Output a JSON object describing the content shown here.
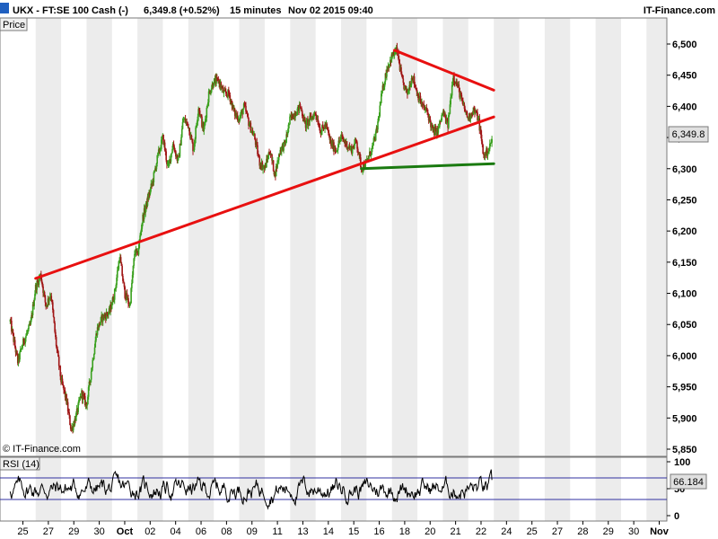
{
  "header": {
    "title": "UKX - FT:SE 100 Cash (-)",
    "quote": "6,349.8 (+0.52%)",
    "interval": "15 minutes",
    "datetime": "Nov 02 2015 09:40",
    "brand": "IT-Finance.com"
  },
  "price_panel": {
    "label": "Price",
    "copyright": "© IT-Finance.com",
    "last_price_label": "6,349.8"
  },
  "rsi_panel": {
    "label": "RSI (14)",
    "last_value_label": "66.184"
  },
  "colors": {
    "up_candle": "#3aa01e",
    "down_candle": "#a01616",
    "trendline_red": "#e81010",
    "support_green": "#1a7a10",
    "rsi_line": "#000000",
    "rsi_band": "#3030a0",
    "alt_day_shade": "#ececec"
  },
  "chart_data": [
    {
      "type": "candlestick",
      "panel": "price",
      "ylim": [
        5850,
        6520
      ],
      "y_ticks": [
        5850,
        5900,
        5950,
        6000,
        6050,
        6100,
        6150,
        6200,
        6250,
        6300,
        6350,
        6400,
        6450,
        6500
      ],
      "y_tick_labels": [
        "5,850",
        "5,900",
        "5,950",
        "6,000",
        "6,050",
        "6,100",
        "6,150",
        "6,200",
        "6,250",
        "6,300",
        "6,350",
        "6,400",
        "6,450",
        "6,500"
      ],
      "x_ticks": [
        "25",
        "27",
        "29",
        "30",
        "Oct",
        "02",
        "04",
        "06",
        "08",
        "09",
        "11",
        "13",
        "14",
        "15",
        "16",
        "18",
        "20",
        "21",
        "22",
        "24",
        "25",
        "27",
        "28",
        "29",
        "30",
        "Nov"
      ],
      "x_tick_sessions": [
        0.5,
        1.5,
        2.5,
        3.5,
        4.5,
        5.5,
        6.5,
        7.5,
        8.5,
        9.5,
        10.5,
        11.5,
        12.5,
        13.5,
        14.5,
        15.5,
        16.5,
        17.5,
        18.5,
        19.5,
        20.5,
        21.5,
        22.5,
        23.5,
        24.5,
        25.5
      ],
      "x_range_sessions": [
        -0.4,
        25.8
      ],
      "last_price": 6349.8,
      "price_path": [
        [
          0.0,
          6055
        ],
        [
          0.3,
          5990
        ],
        [
          0.5,
          6020
        ],
        [
          0.8,
          6050
        ],
        [
          1.0,
          6110
        ],
        [
          1.2,
          6130
        ],
        [
          1.4,
          6080
        ],
        [
          1.6,
          6100
        ],
        [
          1.8,
          6020
        ],
        [
          2.0,
          5960
        ],
        [
          2.2,
          5930
        ],
        [
          2.4,
          5880
        ],
        [
          2.6,
          5905
        ],
        [
          2.8,
          5940
        ],
        [
          3.0,
          5920
        ],
        [
          3.2,
          5980
        ],
        [
          3.4,
          6040
        ],
        [
          3.6,
          6060
        ],
        [
          3.9,
          6070
        ],
        [
          4.1,
          6100
        ],
        [
          4.3,
          6160
        ],
        [
          4.5,
          6100
        ],
        [
          4.7,
          6080
        ],
        [
          4.9,
          6170
        ],
        [
          5.0,
          6160
        ],
        [
          5.2,
          6220
        ],
        [
          5.4,
          6250
        ],
        [
          5.6,
          6280
        ],
        [
          5.8,
          6320
        ],
        [
          6.0,
          6350
        ],
        [
          6.2,
          6300
        ],
        [
          6.4,
          6340
        ],
        [
          6.6,
          6310
        ],
        [
          6.8,
          6380
        ],
        [
          7.0,
          6370
        ],
        [
          7.2,
          6330
        ],
        [
          7.4,
          6400
        ],
        [
          7.6,
          6360
        ],
        [
          7.8,
          6420
        ],
        [
          8.0,
          6440
        ],
        [
          8.2,
          6440
        ],
        [
          8.4,
          6420
        ],
        [
          8.6,
          6420
        ],
        [
          8.8,
          6390
        ],
        [
          9.0,
          6380
        ],
        [
          9.2,
          6400
        ],
        [
          9.4,
          6370
        ],
        [
          9.6,
          6350
        ],
        [
          9.8,
          6310
        ],
        [
          10.0,
          6300
        ],
        [
          10.2,
          6330
        ],
        [
          10.4,
          6290
        ],
        [
          10.6,
          6330
        ],
        [
          10.8,
          6340
        ],
        [
          11.0,
          6380
        ],
        [
          11.2,
          6390
        ],
        [
          11.4,
          6400
        ],
        [
          11.6,
          6370
        ],
        [
          11.8,
          6380
        ],
        [
          12.0,
          6390
        ],
        [
          12.2,
          6360
        ],
        [
          12.4,
          6370
        ],
        [
          12.6,
          6340
        ],
        [
          12.8,
          6330
        ],
        [
          13.0,
          6350
        ],
        [
          13.2,
          6340
        ],
        [
          13.4,
          6330
        ],
        [
          13.6,
          6345
        ],
        [
          13.8,
          6300
        ],
        [
          14.0,
          6310
        ],
        [
          14.2,
          6330
        ],
        [
          14.4,
          6360
        ],
        [
          14.6,
          6420
        ],
        [
          14.8,
          6460
        ],
        [
          15.0,
          6480
        ],
        [
          15.2,
          6490
        ],
        [
          15.4,
          6440
        ],
        [
          15.6,
          6420
        ],
        [
          15.8,
          6450
        ],
        [
          16.0,
          6420
        ],
        [
          16.2,
          6400
        ],
        [
          16.4,
          6390
        ],
        [
          16.6,
          6360
        ],
        [
          16.8,
          6360
        ],
        [
          17.0,
          6390
        ],
        [
          17.2,
          6370
        ],
        [
          17.4,
          6450
        ],
        [
          17.6,
          6430
        ],
        [
          17.8,
          6400
        ],
        [
          18.0,
          6380
        ],
        [
          18.2,
          6395
        ],
        [
          18.4,
          6380
        ],
        [
          18.6,
          6320
        ],
        [
          18.8,
          6330
        ],
        [
          18.95,
          6349.8
        ]
      ],
      "trendlines": [
        {
          "name": "upper resistance",
          "color": "red",
          "points": [
            [
              15.1,
              6490
            ],
            [
              19.0,
              6426
            ]
          ]
        },
        {
          "name": "rising support",
          "color": "red",
          "points": [
            [
              1.0,
              6124
            ],
            [
              19.0,
              6383
            ]
          ]
        },
        {
          "name": "horizontal support",
          "color": "green",
          "points": [
            [
              13.8,
              6300
            ],
            [
              19.0,
              6308
            ]
          ]
        }
      ]
    },
    {
      "type": "line",
      "panel": "rsi",
      "name": "RSI (14)",
      "ylim": [
        0,
        100
      ],
      "y_ticks": [
        0,
        50,
        100
      ],
      "y_tick_labels": [
        "0",
        "50",
        "100"
      ],
      "bands": [
        30,
        70
      ],
      "last_value": 66.184
    }
  ]
}
